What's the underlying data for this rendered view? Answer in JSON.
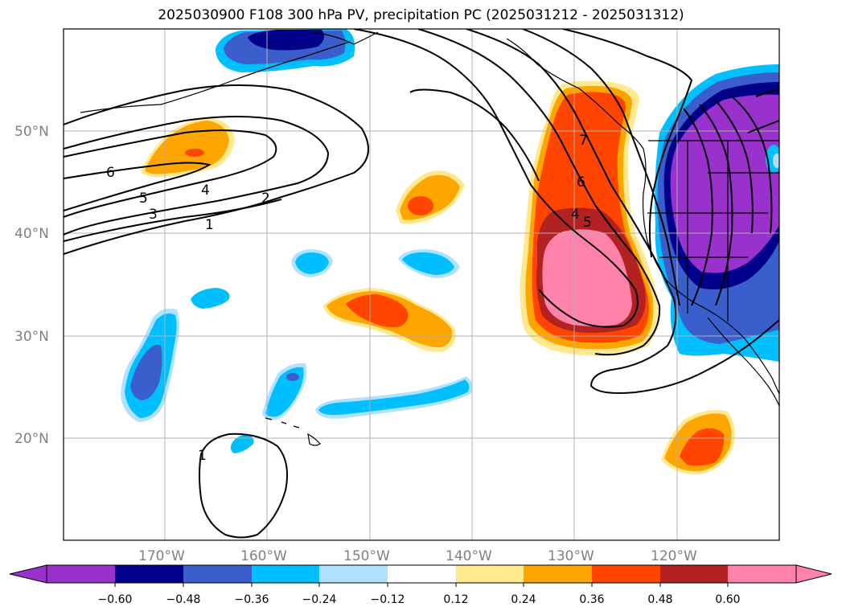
{
  "title": "2025030900 F108 300 hPa PV, precipitation PC (2025031212 - 2025031312)",
  "map": {
    "lat_ticks": [
      "20°N",
      "30°N",
      "40°N",
      "50°N"
    ],
    "lon_ticks": [
      "170°W",
      "160°W",
      "150°W",
      "140°W",
      "130°W",
      "120°W"
    ],
    "contour_labels": [
      "6",
      "5",
      "4",
      "3",
      "2",
      "1",
      "1",
      "7",
      "6",
      "4",
      "5"
    ],
    "gridlines": true
  },
  "colorbar": {
    "tick_labels": [
      "−0.60",
      "−0.48",
      "−0.36",
      "−0.24",
      "−0.12",
      "0.12",
      "0.24",
      "0.36",
      "0.48",
      "0.60"
    ],
    "colors": [
      "#9932cc",
      "#00008b",
      "#3a5fcd",
      "#00bfff",
      "#b0e2ff",
      "#ffffff",
      "#ffe98f",
      "#ffa500",
      "#ff4500",
      "#b22222",
      "#ff82ab"
    ],
    "extend": "both"
  },
  "fill_colors": {
    "purple": "#9932cc",
    "darkblue": "#00008b",
    "blue": "#3a5fcd",
    "skyblue": "#00bfff",
    "lightblue": "#b0e2ff",
    "lightyellow": "#ffe98f",
    "orange": "#ffa500",
    "redorange": "#ff4500",
    "firebrick": "#b22222",
    "pink": "#ff82ab"
  }
}
